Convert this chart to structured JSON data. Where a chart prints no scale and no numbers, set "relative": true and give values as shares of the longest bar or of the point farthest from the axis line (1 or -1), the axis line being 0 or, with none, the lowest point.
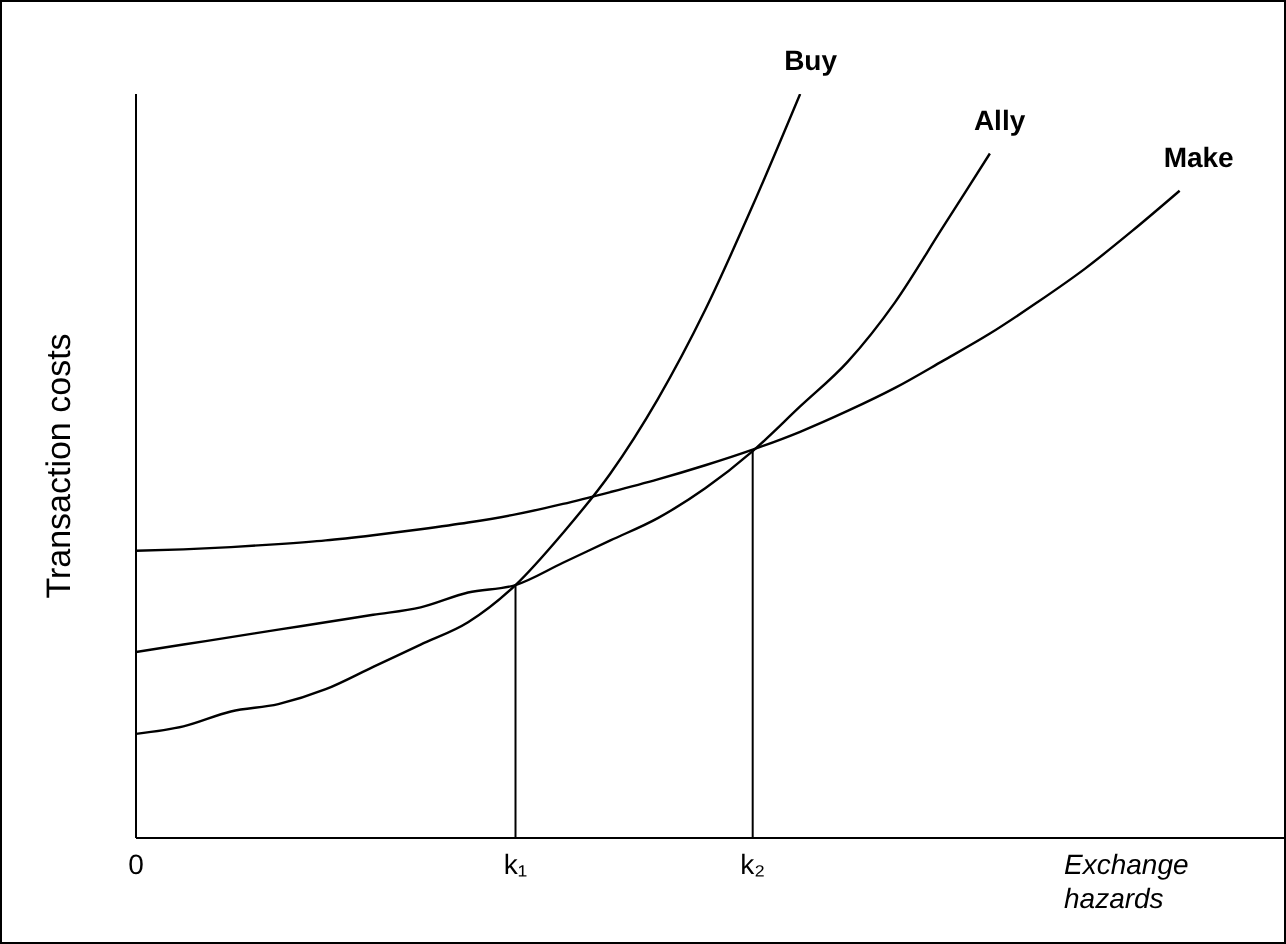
{
  "chart_data": {
    "type": "line",
    "relative": true,
    "xlabel": "Exchange hazards",
    "ylabel": "Transaction costs",
    "marker": "none",
    "categories": [
      "0",
      null,
      null,
      null,
      null,
      null,
      null,
      null,
      "k₁",
      null,
      null,
      null,
      null,
      "k₂",
      null,
      null,
      null,
      null,
      null,
      null,
      null,
      null,
      null
    ],
    "series": [
      {
        "name": "Buy",
        "color": "#000000",
        "values": [
          0.14,
          0.15,
          0.17,
          0.18,
          0.2,
          0.23,
          0.26,
          0.29,
          0.34,
          0.41,
          0.49,
          0.59,
          0.71,
          0.85,
          1,
          null,
          null,
          null,
          null,
          null,
          null,
          null,
          null
        ]
      },
      {
        "name": "Ally",
        "color": "#000000",
        "values": [
          0.25,
          0.26,
          0.27,
          0.28,
          0.29,
          0.3,
          0.31,
          0.33,
          0.34,
          0.37,
          0.4,
          0.43,
          0.47,
          0.52,
          0.58,
          0.64,
          0.72,
          0.82,
          0.92,
          null,
          null,
          null,
          null
        ]
      },
      {
        "name": "Make",
        "color": "#000000",
        "values": [
          0.386,
          0.388,
          0.391,
          0.395,
          0.4,
          0.407,
          0.415,
          0.424,
          0.435,
          0.449,
          0.465,
          0.482,
          0.501,
          0.522,
          0.546,
          0.574,
          0.605,
          0.641,
          0.678,
          0.72,
          0.765,
          0.816,
          0.87
        ]
      }
    ],
    "ref_lines": [
      {
        "axis": "x",
        "value": "k₁"
      },
      {
        "axis": "x",
        "value": "k₂"
      }
    ]
  }
}
